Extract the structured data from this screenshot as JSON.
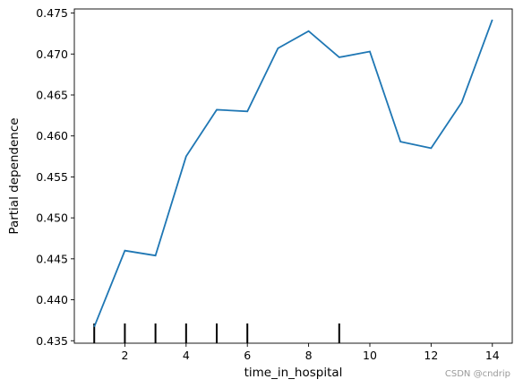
{
  "chart_data": {
    "type": "line",
    "xlabel": "time_in_hospital",
    "ylabel": "Partial dependence",
    "xlim": [
      0.35,
      14.65
    ],
    "ylim": [
      0.4347,
      0.4755
    ],
    "xticks": [
      2,
      4,
      6,
      8,
      10,
      12,
      14
    ],
    "yticks": [
      0.435,
      0.44,
      0.445,
      0.45,
      0.455,
      0.46,
      0.465,
      0.47,
      0.475
    ],
    "ytick_labels": [
      "0.435",
      "0.440",
      "0.445",
      "0.450",
      "0.455",
      "0.460",
      "0.465",
      "0.470",
      "0.475"
    ],
    "grid": false,
    "line_color": "#1f77b4",
    "x": [
      1,
      2,
      3,
      4,
      5,
      6,
      7,
      8,
      9,
      10,
      11,
      12,
      13,
      14
    ],
    "values": [
      0.4367,
      0.446,
      0.4454,
      0.4575,
      0.4632,
      0.463,
      0.4707,
      0.4728,
      0.4696,
      0.4703,
      0.4593,
      0.4585,
      0.4641,
      0.4742
    ],
    "rug": [
      1,
      2,
      3,
      4,
      5,
      6,
      9
    ]
  },
  "watermark": "CSDN @cndrip"
}
